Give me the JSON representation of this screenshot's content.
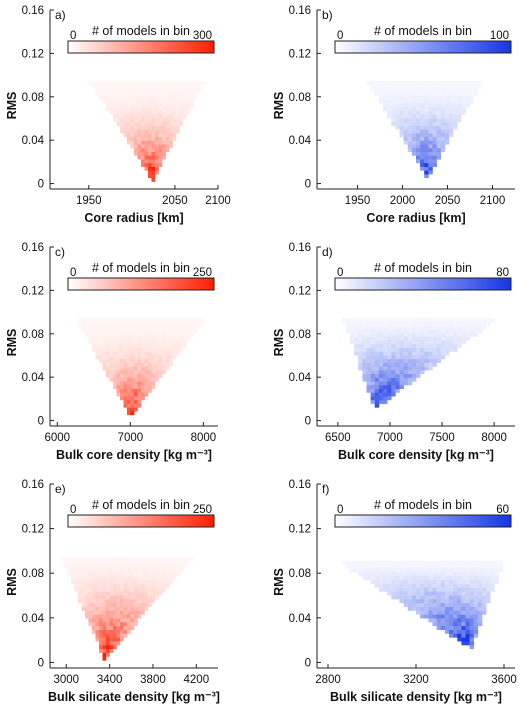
{
  "chart_data": [
    {
      "id": "a",
      "type": "heatmap",
      "panel_label": "a)",
      "colormap": "red",
      "color_max": "#ff1e00",
      "xlabel": "Core radius [km]",
      "ylabel": "RMS",
      "xlim": [
        1905,
        2100
      ],
      "ylim": [
        -0.005,
        0.16
      ],
      "xticks": [
        1950,
        2050,
        2100
      ],
      "xtick_labels": [
        "1950",
        "2050",
        "2100"
      ],
      "yticks": [
        0,
        0.04,
        0.08,
        0.12,
        0.16
      ],
      "ytick_labels": [
        "0",
        "0.04",
        "0.08",
        "0.12",
        "0.16"
      ],
      "colorbar": {
        "title": "# of models in bin",
        "min": 0,
        "max": 300,
        "min_label": "0",
        "max_label": "300"
      },
      "distribution": {
        "min_x": 2024,
        "min_y": 0.002,
        "left_x_at_top": 1950,
        "right_x_at_top": 2085,
        "top_y": 0.095,
        "peak_count": 300,
        "concentration": 2.2
      }
    },
    {
      "id": "b",
      "type": "heatmap",
      "panel_label": "b)",
      "colormap": "blue",
      "color_max": "#1436e6",
      "xlabel": "Core radius [km]",
      "ylabel": "RMS",
      "xlim": [
        1905,
        2125
      ],
      "ylim": [
        -0.005,
        0.16
      ],
      "xticks": [
        1950,
        2000,
        2050,
        2100
      ],
      "xtick_labels": [
        "1950",
        "2000",
        "2050",
        "2100"
      ],
      "yticks": [
        0,
        0.04,
        0.08,
        0.12,
        0.16
      ],
      "ytick_labels": [
        "0",
        "0.04",
        "0.08",
        "0.12",
        "0.16"
      ],
      "colorbar": {
        "title": "# of models in bin",
        "min": 0,
        "max": 100,
        "min_label": "0",
        "max_label": "100"
      },
      "distribution": {
        "min_x": 2028,
        "min_y": 0.004,
        "left_x_at_top": 1960,
        "right_x_at_top": 2090,
        "top_y": 0.095,
        "peak_count": 100,
        "concentration": 2.0
      }
    },
    {
      "id": "c",
      "type": "heatmap",
      "panel_label": "c)",
      "colormap": "red",
      "color_max": "#ff1e00",
      "xlabel": "Bulk core density [kg m⁻³]",
      "ylabel": "RMS",
      "xlim": [
        5900,
        8200
      ],
      "ylim": [
        -0.005,
        0.16
      ],
      "xticks": [
        6000,
        7000,
        8000
      ],
      "xtick_labels": [
        "6000",
        "7000",
        "8000"
      ],
      "yticks": [
        0,
        0.04,
        0.08,
        0.12,
        0.16
      ],
      "ytick_labels": [
        "0",
        "0.04",
        "0.08",
        "0.12",
        "0.16"
      ],
      "colorbar": {
        "title": "# of models in bin",
        "min": 0,
        "max": 250,
        "min_label": "0",
        "max_label": "250"
      },
      "distribution": {
        "min_x": 7000,
        "min_y": 0.003,
        "left_x_at_top": 6250,
        "right_x_at_top": 8050,
        "top_y": 0.095,
        "peak_count": 250,
        "concentration": 2.2
      }
    },
    {
      "id": "d",
      "type": "heatmap",
      "panel_label": "d)",
      "colormap": "blue",
      "color_max": "#1436e6",
      "xlabel": "Bulk core density [kg m⁻³]",
      "ylabel": "RMS",
      "xlim": [
        6300,
        8200
      ],
      "ylim": [
        -0.005,
        0.16
      ],
      "xticks": [
        6500,
        7000,
        7500,
        8000
      ],
      "xtick_labels": [
        "6500",
        "7000",
        "7500",
        "8000"
      ],
      "yticks": [
        0,
        0.04,
        0.08,
        0.12,
        0.16
      ],
      "ytick_labels": [
        "0",
        "0.04",
        "0.08",
        "0.12",
        "0.16"
      ],
      "colorbar": {
        "title": "# of models in bin",
        "min": 0,
        "max": 80,
        "min_label": "0",
        "max_label": "80"
      },
      "distribution": {
        "min_x": 6850,
        "min_y": 0.01,
        "left_x_at_top": 6550,
        "right_x_at_top": 8050,
        "top_y": 0.095,
        "peak_count": 80,
        "concentration": 1.6
      }
    },
    {
      "id": "e",
      "type": "heatmap",
      "panel_label": "e)",
      "colormap": "red",
      "color_max": "#ff1e00",
      "xlabel": "Bulk silicate density [kg m⁻³]",
      "ylabel": "RMS",
      "xlim": [
        2850,
        4400
      ],
      "ylim": [
        -0.005,
        0.16
      ],
      "xticks": [
        3000,
        3400,
        3800,
        4200
      ],
      "xtick_labels": [
        "3000",
        "3400",
        "3800",
        "4200"
      ],
      "yticks": [
        0,
        0.04,
        0.08,
        0.12,
        0.16
      ],
      "ytick_labels": [
        "0",
        "0.04",
        "0.08",
        "0.12",
        "0.16"
      ],
      "colorbar": {
        "title": "# of models in bin",
        "min": 0,
        "max": 250,
        "min_label": "0",
        "max_label": "250"
      },
      "distribution": {
        "min_x": 3350,
        "min_y": 0.003,
        "left_x_at_top": 2950,
        "right_x_at_top": 4200,
        "top_y": 0.095,
        "peak_count": 250,
        "concentration": 1.8
      }
    },
    {
      "id": "f",
      "type": "heatmap",
      "panel_label": "f)",
      "colormap": "blue",
      "color_max": "#1436e6",
      "xlabel": "Bulk silicate density [kg m⁻³]",
      "ylabel": "RMS",
      "xlim": [
        2750,
        3650
      ],
      "ylim": [
        -0.005,
        0.16
      ],
      "xticks": [
        2800,
        3200,
        3600
      ],
      "xtick_labels": [
        "2800",
        "3200",
        "3600"
      ],
      "yticks": [
        0,
        0.04,
        0.08,
        0.12,
        0.16
      ],
      "ytick_labels": [
        "0",
        "0.04",
        "0.08",
        "0.12",
        "0.16"
      ],
      "colorbar": {
        "title": "# of models in bin",
        "min": 0,
        "max": 60,
        "min_label": "0",
        "max_label": "60"
      },
      "distribution": {
        "min_x": 3450,
        "min_y": 0.012,
        "left_x_at_top": 2850,
        "right_x_at_top": 3600,
        "top_y": 0.09,
        "peak_count": 60,
        "concentration": 1.4
      }
    }
  ]
}
